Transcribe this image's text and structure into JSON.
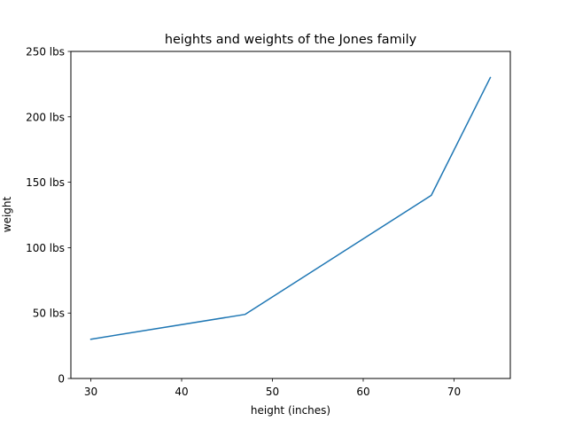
{
  "chart_data": {
    "type": "line",
    "title": "heights and weights of the Jones family",
    "xlabel": "height (inches)",
    "ylabel": "weight",
    "x": [
      30,
      47,
      67.5,
      74
    ],
    "series": [
      {
        "values": [
          30,
          49,
          140,
          230
        ]
      }
    ],
    "xlim": [
      27.8,
      76.2
    ],
    "ylim": [
      0,
      250
    ],
    "x_ticks": [
      30,
      40,
      50,
      60,
      70
    ],
    "x_tick_labels": [
      "30",
      "40",
      "50",
      "60",
      "70"
    ],
    "y_ticks": [
      0,
      50,
      100,
      150,
      200,
      250
    ],
    "y_tick_labels": [
      "0",
      "50 lbs",
      "100 lbs",
      "150 lbs",
      "200 lbs",
      "250 lbs"
    ],
    "grid": false,
    "colors": {
      "series": "#1f77b4",
      "axes": "#000000"
    }
  }
}
